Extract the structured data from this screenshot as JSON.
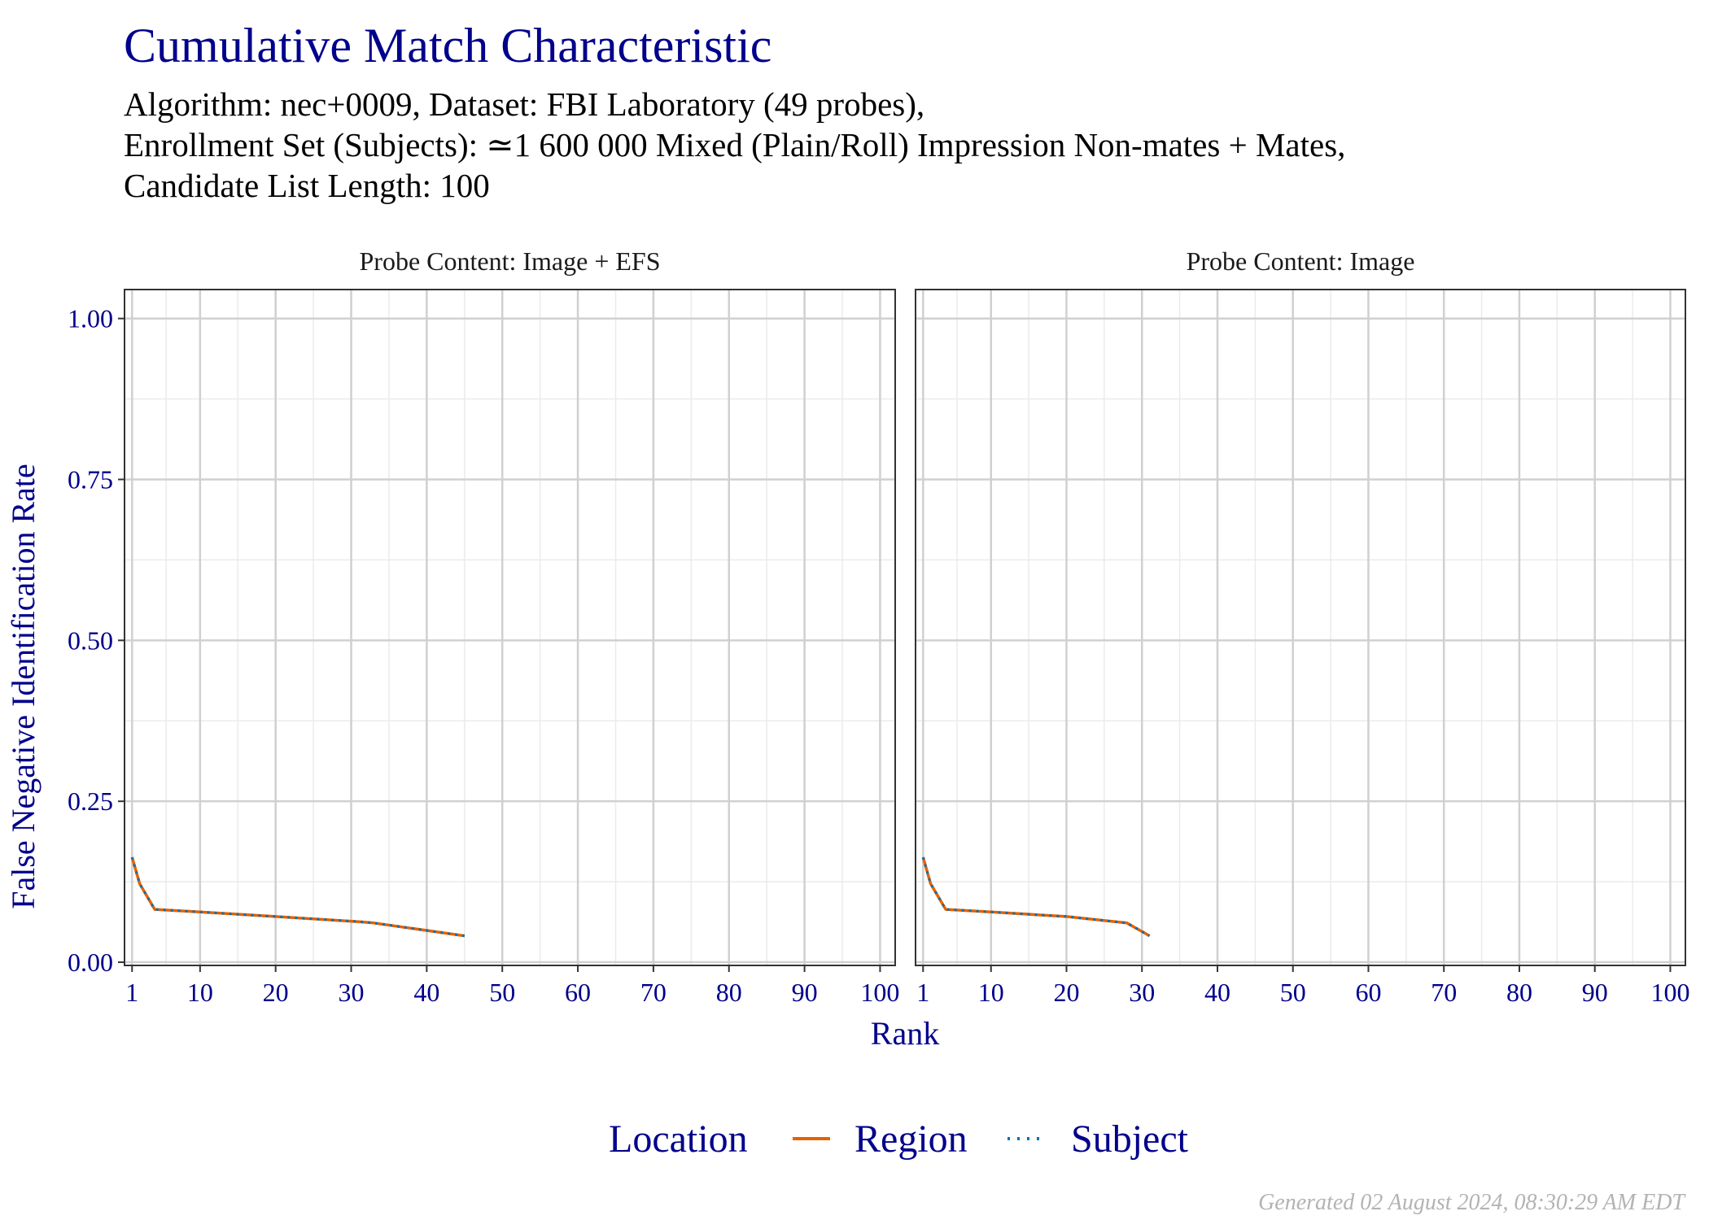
{
  "title": "Cumulative Match Characteristic",
  "subtitle_lines": [
    "Algorithm: nec+0009, Dataset: FBI Laboratory (49 probes),",
    "Enrollment Set (Subjects): ≃1 600 000 Mixed (Plain/Roll) Impression Non-mates + Mates,",
    "Candidate List Length: 100"
  ],
  "caption": "Generated 02 August 2024, 08:30:29 AM EDT",
  "colors": {
    "text_accent": "#00008b",
    "region": "#e66101",
    "subject": "#0571b0",
    "grid_major": "#d0d0d0",
    "grid_minor": "#ebebeb"
  },
  "chart_data": {
    "type": "line",
    "xlabel": "Rank",
    "ylabel": "False Negative Identification Rate",
    "xlim": [
      0,
      102
    ],
    "ylim": [
      -0.005,
      1.045
    ],
    "x_ticks": [
      1,
      10,
      20,
      30,
      40,
      50,
      60,
      70,
      80,
      90,
      100
    ],
    "y_ticks": [
      0.0,
      0.25,
      0.5,
      0.75,
      1.0
    ],
    "y_tick_labels": [
      "0.00",
      "0.25",
      "0.50",
      "0.75",
      "1.00"
    ],
    "grid": true,
    "legend": {
      "title": "Location",
      "position": "bottom",
      "entries": [
        "Region",
        "Subject"
      ]
    },
    "panels": [
      {
        "label": "Probe Content: Image + EFS",
        "series": [
          {
            "name": "Region",
            "x": [
              1,
              2,
              4,
              10,
              20,
              31,
              33,
              45
            ],
            "y": [
              0.163,
              0.122,
              0.082,
              0.078,
              0.071,
              0.063,
              0.061,
              0.041
            ]
          },
          {
            "name": "Subject",
            "x": [
              1,
              2,
              4,
              10,
              20,
              31,
              33,
              45
            ],
            "y": [
              0.163,
              0.122,
              0.082,
              0.078,
              0.071,
              0.063,
              0.061,
              0.041
            ]
          }
        ]
      },
      {
        "label": "Probe Content: Image",
        "series": [
          {
            "name": "Region",
            "x": [
              1,
              2,
              4,
              10,
              20,
              28,
              31
            ],
            "y": [
              0.163,
              0.122,
              0.082,
              0.078,
              0.071,
              0.061,
              0.041
            ]
          },
          {
            "name": "Subject",
            "x": [
              1,
              2,
              4,
              10,
              20,
              28,
              31
            ],
            "y": [
              0.163,
              0.122,
              0.082,
              0.078,
              0.071,
              0.061,
              0.041
            ]
          }
        ]
      }
    ]
  }
}
